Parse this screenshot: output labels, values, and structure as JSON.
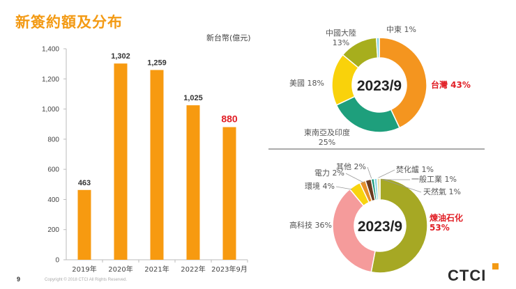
{
  "page": {
    "title": "新簽約額及分布",
    "unit_label": "新台幣(億元)",
    "page_number": "9",
    "copyright": "Copyright © 2018 CTCI All Rights Reserved.",
    "logo_text": "CTCI"
  },
  "chart_data": [
    {
      "type": "bar",
      "categories": [
        "2019年",
        "2020年",
        "2021年",
        "2022年",
        "2023年9月"
      ],
      "values": [
        463,
        1302,
        1259,
        1025,
        880
      ],
      "value_labels": [
        "463",
        "1,302",
        "1,259",
        "1,025",
        "880"
      ],
      "highlight_index": 4,
      "yticks": [
        "0",
        "200",
        "400",
        "600",
        "800",
        "1,000",
        "1,200",
        "1,400"
      ],
      "ylim": [
        0,
        1400
      ],
      "grid": false,
      "colors": {
        "bar": "#f79a10",
        "label": "#333333",
        "highlight_label": "#e11e25"
      }
    },
    {
      "type": "pie",
      "center_label": "2023/9",
      "slices": [
        {
          "label": "台灣 43%",
          "value": 43,
          "color": "#f4951f",
          "highlight": true
        },
        {
          "label": "東南亞及印度\n25%",
          "value": 25,
          "color": "#1e9f7c"
        },
        {
          "label": "美國 18%",
          "value": 18,
          "color": "#f9d20b"
        },
        {
          "label": "中國大陸\n13%",
          "value": 13,
          "color": "#a7ae1d"
        },
        {
          "label": "中東 1%",
          "value": 1,
          "color": "#89d4e6"
        }
      ]
    },
    {
      "type": "pie",
      "center_label": "2023/9",
      "slices": [
        {
          "label": "煉油石化\n53%",
          "value": 53,
          "color": "#a6a824",
          "highlight": true
        },
        {
          "label": "高科技 36%",
          "value": 36,
          "color": "#f59b9b"
        },
        {
          "label": "環境 4%",
          "value": 4,
          "color": "#f8d40e"
        },
        {
          "label": "電力 2%",
          "value": 2,
          "color": "#e8912a"
        },
        {
          "label": "其他 2%",
          "value": 2,
          "color": "#6a3b20"
        },
        {
          "label": "焚化爐 1%",
          "value": 1,
          "color": "#1e9c7c"
        },
        {
          "label": "一般工業 1%",
          "value": 1,
          "color": "#89d4e6"
        },
        {
          "label": "天然氣 1%",
          "value": 1,
          "color": "#e8e0a8"
        }
      ]
    }
  ]
}
